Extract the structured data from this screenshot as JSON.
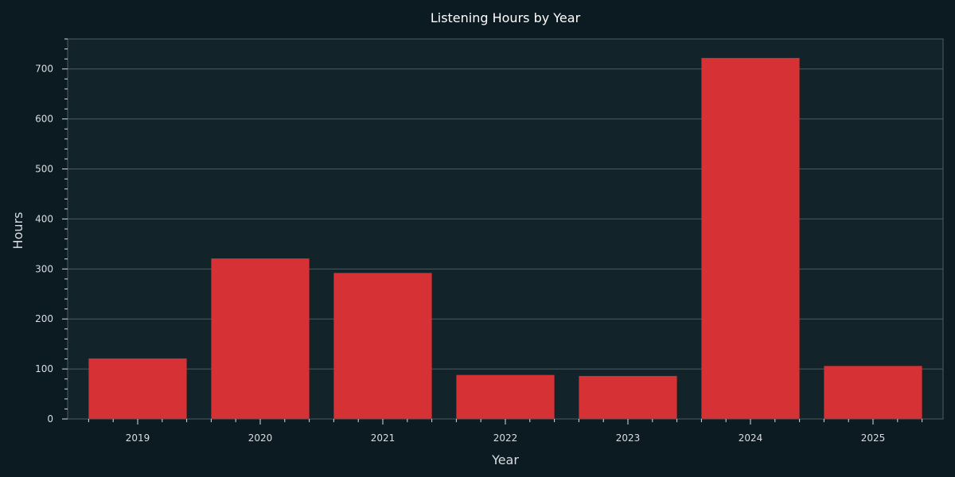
{
  "chart_data": {
    "type": "bar",
    "title": "Listening Hours by Year",
    "xlabel": "Year",
    "ylabel": "Hours",
    "categories": [
      "2019",
      "2020",
      "2021",
      "2022",
      "2023",
      "2024",
      "2025"
    ],
    "values": [
      121,
      321,
      292,
      88,
      86,
      722,
      106
    ],
    "ylim": [
      0,
      760
    ],
    "yticks": [
      0,
      100,
      200,
      300,
      400,
      500,
      600,
      700
    ],
    "grid": true,
    "colors": {
      "bar": "#d63235",
      "background": "#0c1a21",
      "plot_background": "#13232a",
      "grid": "#4a5b60",
      "frame": "#4d5e63",
      "text": "#d9dde0"
    }
  }
}
